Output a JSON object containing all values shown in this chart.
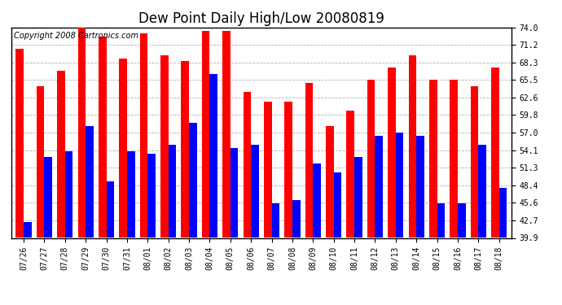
{
  "title": "Dew Point Daily High/Low 20080819",
  "copyright": "Copyright 2008 Cartronics.com",
  "dates": [
    "07/26",
    "07/27",
    "07/28",
    "07/29",
    "07/30",
    "07/31",
    "08/01",
    "08/02",
    "08/03",
    "08/04",
    "08/05",
    "08/06",
    "08/07",
    "08/08",
    "08/09",
    "08/10",
    "08/11",
    "08/12",
    "08/13",
    "08/14",
    "08/15",
    "08/16",
    "08/17",
    "08/18"
  ],
  "highs": [
    70.5,
    64.5,
    67.0,
    74.5,
    72.5,
    69.0,
    73.0,
    69.5,
    68.5,
    73.5,
    73.5,
    63.5,
    62.0,
    62.0,
    65.0,
    58.0,
    60.5,
    65.5,
    67.5,
    69.5,
    65.5,
    65.5,
    64.5,
    67.5
  ],
  "lows": [
    42.5,
    53.0,
    54.0,
    58.0,
    49.0,
    54.0,
    53.5,
    55.0,
    58.5,
    66.5,
    54.5,
    55.0,
    45.5,
    46.0,
    52.0,
    50.5,
    53.0,
    56.5,
    57.0,
    56.5,
    45.5,
    45.5,
    55.0,
    48.0
  ],
  "high_color": "#ff0000",
  "low_color": "#0000ff",
  "bg_color": "#ffffff",
  "plot_bg_color": "#ffffff",
  "grid_color": "#b0b0b0",
  "ymin": 39.9,
  "ymax": 74.0,
  "yticks": [
    39.9,
    42.7,
    45.6,
    48.4,
    51.3,
    54.1,
    57.0,
    59.8,
    62.6,
    65.5,
    68.3,
    71.2,
    74.0
  ],
  "title_fontsize": 12,
  "copyright_fontsize": 7,
  "tick_fontsize": 7,
  "bar_width": 0.38,
  "fig_width": 6.9,
  "fig_height": 3.75,
  "dpi": 100
}
